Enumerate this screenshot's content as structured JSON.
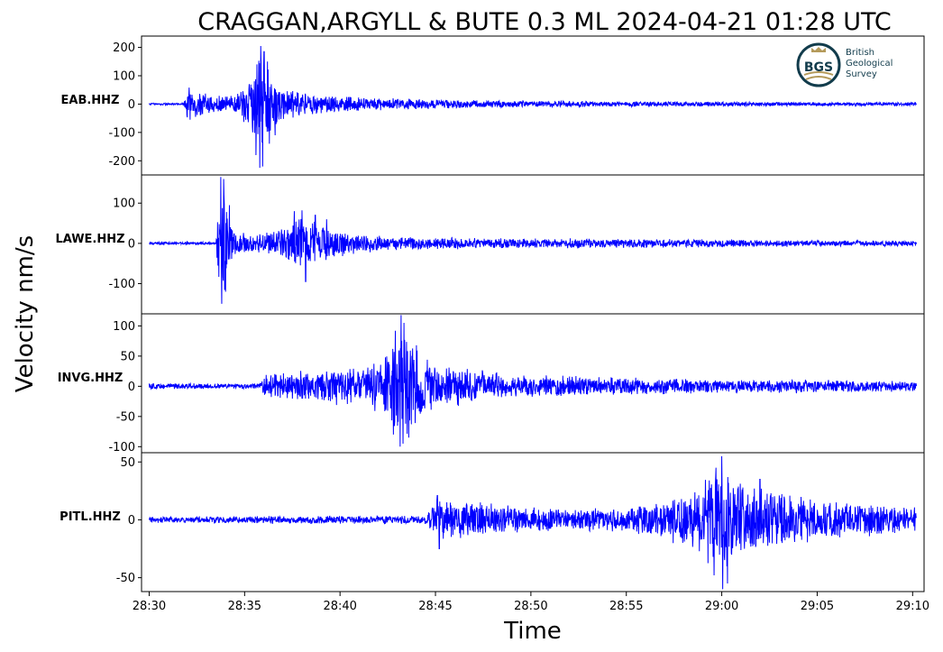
{
  "chart_data": {
    "type": "line",
    "title": "CRAGGAN,ARGYLL & BUTE 0.3 ML   2024-04-21 01:28 UTC",
    "xlabel": "Time",
    "ylabel": "Velocity nm/s",
    "x_ticks": [
      "28:30",
      "28:35",
      "28:40",
      "28:45",
      "28:50",
      "28:55",
      "29:00",
      "29:05",
      "29:10"
    ],
    "xlim": [
      -0.4,
      40.6
    ],
    "x_start": 0,
    "x_end": 40.2,
    "line_color": "#0000ff",
    "grid": false,
    "logo": {
      "abbr": "BGS",
      "lines": [
        "British",
        "Geological",
        "Survey"
      ],
      "colors": {
        "dark": "#123c4c",
        "gold": "#b49a5a"
      }
    },
    "series": [
      {
        "name": "EAB.HHZ",
        "ylim": [
          -250,
          240
        ],
        "yticks": [
          200,
          100,
          0,
          -100,
          -200
        ],
        "envelope": [
          [
            0,
            4
          ],
          [
            1.8,
            4
          ],
          [
            2.0,
            60
          ],
          [
            2.5,
            48
          ],
          [
            3.5,
            35
          ],
          [
            4.5,
            38
          ],
          [
            5.2,
            80
          ],
          [
            5.7,
            185
          ],
          [
            6.0,
            195
          ],
          [
            6.4,
            110
          ],
          [
            7.2,
            55
          ],
          [
            9,
            35
          ],
          [
            12,
            24
          ],
          [
            16,
            16
          ],
          [
            20,
            12
          ],
          [
            25,
            10
          ],
          [
            30,
            9
          ],
          [
            35,
            7
          ],
          [
            40.2,
            7
          ]
        ],
        "peaks": [
          [
            5.85,
            205
          ],
          [
            5.8,
            -225
          ],
          [
            6.02,
            185
          ],
          [
            5.95,
            -220
          ],
          [
            6.2,
            150
          ],
          [
            6.3,
            -140
          ],
          [
            5.65,
            140
          ],
          [
            5.6,
            -180
          ],
          [
            6.6,
            95
          ],
          [
            6.6,
            -110
          ],
          [
            2.1,
            58
          ],
          [
            2.15,
            -55
          ]
        ]
      },
      {
        "name": "LAWE.HHZ",
        "ylim": [
          -175,
          170
        ],
        "yticks": [
          100,
          0,
          -100
        ],
        "envelope": [
          [
            0,
            4
          ],
          [
            3.5,
            4
          ],
          [
            3.7,
            165
          ],
          [
            3.9,
            150
          ],
          [
            4.1,
            80
          ],
          [
            4.6,
            35
          ],
          [
            5.5,
            22
          ],
          [
            6.3,
            30
          ],
          [
            7.2,
            50
          ],
          [
            7.8,
            75
          ],
          [
            8.4,
            62
          ],
          [
            9.3,
            45
          ],
          [
            10.5,
            28
          ],
          [
            13,
            18
          ],
          [
            20,
            13
          ],
          [
            25,
            12
          ],
          [
            30,
            10
          ],
          [
            35,
            8
          ],
          [
            40.2,
            7
          ]
        ],
        "peaks": [
          [
            3.75,
            165
          ],
          [
            3.8,
            -150
          ],
          [
            3.9,
            160
          ],
          [
            4.0,
            -120
          ],
          [
            4.2,
            95
          ],
          [
            4.15,
            -40
          ],
          [
            8.0,
            82
          ],
          [
            8.2,
            -95
          ],
          [
            7.6,
            80
          ],
          [
            8.7,
            70
          ],
          [
            9.3,
            60
          ]
        ]
      },
      {
        "name": "INVG.HHZ",
        "ylim": [
          -110,
          120
        ],
        "yticks": [
          100,
          50,
          0,
          -50,
          -100
        ],
        "envelope": [
          [
            0,
            5
          ],
          [
            5.8,
            5
          ],
          [
            6.0,
            20
          ],
          [
            7.0,
            25
          ],
          [
            9.0,
            30
          ],
          [
            11,
            33
          ],
          [
            12.2,
            50
          ],
          [
            12.8,
            85
          ],
          [
            13.3,
            100
          ],
          [
            14.0,
            70
          ],
          [
            15.0,
            40
          ],
          [
            17.5,
            30
          ],
          [
            19,
            20
          ],
          [
            24,
            16
          ],
          [
            30,
            12
          ],
          [
            35,
            11
          ],
          [
            40.2,
            9
          ]
        ],
        "peaks": [
          [
            13.2,
            118
          ],
          [
            13.15,
            -100
          ],
          [
            13.35,
            105
          ],
          [
            13.3,
            -95
          ],
          [
            12.9,
            92
          ],
          [
            12.8,
            -80
          ],
          [
            13.6,
            -85
          ],
          [
            14.0,
            68
          ]
        ]
      },
      {
        "name": "PITL.HHZ",
        "ylim": [
          -62,
          58
        ],
        "yticks": [
          50,
          0,
          -50
        ],
        "envelope": [
          [
            0,
            3
          ],
          [
            14.5,
            4
          ],
          [
            15.0,
            20
          ],
          [
            16.0,
            18
          ],
          [
            19,
            13
          ],
          [
            22,
            10
          ],
          [
            25,
            12
          ],
          [
            27,
            18
          ],
          [
            28.5,
            30
          ],
          [
            29.5,
            40
          ],
          [
            30.5,
            45
          ],
          [
            31.5,
            32
          ],
          [
            33,
            25
          ],
          [
            36,
            16
          ],
          [
            40.2,
            12
          ]
        ],
        "peaks": [
          [
            30.0,
            55
          ],
          [
            30.05,
            -60
          ],
          [
            30.3,
            50
          ],
          [
            30.3,
            -55
          ],
          [
            29.7,
            45
          ],
          [
            29.6,
            -48
          ],
          [
            15.1,
            21
          ],
          [
            15.2,
            -25
          ],
          [
            32.0,
            35
          ]
        ]
      }
    ]
  }
}
